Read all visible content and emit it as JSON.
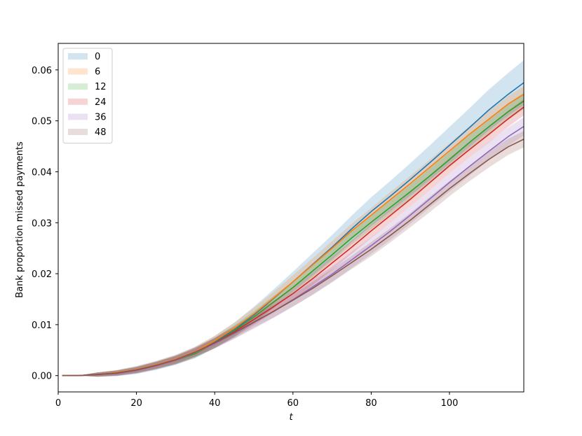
{
  "chart_data": {
    "type": "line",
    "title": "",
    "xlabel": "t",
    "ylabel": "Bank proportion missed payments",
    "xlim": [
      0,
      119
    ],
    "ylim": [
      -0.0032,
      0.0652
    ],
    "xticks": [
      0,
      20,
      40,
      60,
      80,
      100
    ],
    "xtick_labels": [
      "0",
      "20",
      "40",
      "60",
      "80",
      "100"
    ],
    "yticks": [
      0.0,
      0.01,
      0.02,
      0.03,
      0.04,
      0.05,
      0.06
    ],
    "ytick_labels": [
      "0.00",
      "0.01",
      "0.02",
      "0.03",
      "0.04",
      "0.05",
      "0.06"
    ],
    "grid": false,
    "legend_position": "upper-left",
    "shaded_band": "confidence interval around each series mean",
    "x": [
      1,
      5,
      10,
      15,
      20,
      25,
      30,
      35,
      40,
      45,
      50,
      55,
      60,
      65,
      70,
      75,
      80,
      85,
      90,
      95,
      100,
      105,
      110,
      115,
      119
    ],
    "series": [
      {
        "name": "0",
        "color": "#1f77b4",
        "values": [
          0.0,
          0.0,
          0.0002,
          0.0005,
          0.0011,
          0.002,
          0.0031,
          0.0046,
          0.0066,
          0.009,
          0.0119,
          0.0151,
          0.0184,
          0.0218,
          0.0252,
          0.0288,
          0.0322,
          0.0353,
          0.0385,
          0.0418,
          0.0452,
          0.0486,
          0.0521,
          0.0552,
          0.0575
        ],
        "band": [
          0.0,
          0.0,
          0.0004,
          0.0006,
          0.0008,
          0.0009,
          0.001,
          0.0011,
          0.0012,
          0.0014,
          0.0016,
          0.0018,
          0.002,
          0.0022,
          0.0024,
          0.0026,
          0.0028,
          0.003,
          0.0032,
          0.0034,
          0.0036,
          0.0038,
          0.004,
          0.0042,
          0.0044
        ]
      },
      {
        "name": "6",
        "color": "#ff7f0e",
        "values": [
          0.0,
          0.0,
          0.0002,
          0.0006,
          0.0012,
          0.0021,
          0.0032,
          0.0047,
          0.0068,
          0.0093,
          0.0121,
          0.0152,
          0.0184,
          0.0217,
          0.025,
          0.0284,
          0.0315,
          0.0346,
          0.0377,
          0.0409,
          0.0441,
          0.0473,
          0.0503,
          0.0533,
          0.0552
        ],
        "band": [
          0.0,
          0.0,
          0.0004,
          0.0005,
          0.0006,
          0.0007,
          0.0008,
          0.0009,
          0.001,
          0.0011,
          0.0012,
          0.0012,
          0.0013,
          0.0013,
          0.0014,
          0.0014,
          0.0014,
          0.0015,
          0.0015,
          0.0015,
          0.0015,
          0.0016,
          0.0016,
          0.0016,
          0.0016
        ]
      },
      {
        "name": "12",
        "color": "#2ca02c",
        "values": [
          0.0,
          0.0,
          0.0002,
          0.0005,
          0.0011,
          0.002,
          0.003,
          0.0043,
          0.0064,
          0.0088,
          0.0115,
          0.0144,
          0.0173,
          0.0205,
          0.0237,
          0.027,
          0.0301,
          0.0331,
          0.0361,
          0.0392,
          0.0424,
          0.0457,
          0.0488,
          0.0518,
          0.0539
        ],
        "band": [
          0.0,
          0.0,
          0.0004,
          0.0005,
          0.0006,
          0.0007,
          0.0008,
          0.0009,
          0.001,
          0.0011,
          0.0011,
          0.0012,
          0.0012,
          0.0013,
          0.0013,
          0.0013,
          0.0014,
          0.0014,
          0.0014,
          0.0015,
          0.0015,
          0.0015,
          0.0016,
          0.0016,
          0.0016
        ]
      },
      {
        "name": "24",
        "color": "#d62728",
        "values": [
          0.0,
          0.0,
          0.0002,
          0.0005,
          0.0011,
          0.002,
          0.0031,
          0.0046,
          0.0064,
          0.0086,
          0.011,
          0.0135,
          0.0161,
          0.019,
          0.0221,
          0.0252,
          0.0284,
          0.0315,
          0.0346,
          0.0379,
          0.0412,
          0.0443,
          0.0473,
          0.0504,
          0.0527
        ],
        "band": [
          0.0,
          0.0,
          0.0004,
          0.0005,
          0.0006,
          0.0007,
          0.0008,
          0.0009,
          0.001,
          0.0011,
          0.0011,
          0.0012,
          0.0012,
          0.0013,
          0.0013,
          0.0013,
          0.0014,
          0.0014,
          0.0014,
          0.0015,
          0.0015,
          0.0015,
          0.0016,
          0.0016,
          0.0016
        ]
      },
      {
        "name": "36",
        "color": "#9467bd",
        "values": [
          0.0,
          0.0,
          0.0002,
          0.0004,
          0.001,
          0.0019,
          0.003,
          0.0045,
          0.0063,
          0.0083,
          0.0104,
          0.0126,
          0.0149,
          0.0174,
          0.0199,
          0.0227,
          0.0255,
          0.0284,
          0.0315,
          0.0347,
          0.0379,
          0.041,
          0.044,
          0.0469,
          0.0489
        ],
        "band": [
          0.0,
          0.0,
          0.0004,
          0.0005,
          0.0006,
          0.0007,
          0.0008,
          0.0009,
          0.001,
          0.0011,
          0.0012,
          0.0013,
          0.0014,
          0.0015,
          0.0015,
          0.0016,
          0.0016,
          0.0017,
          0.0017,
          0.0017,
          0.0018,
          0.0018,
          0.0018,
          0.0018,
          0.0018
        ]
      },
      {
        "name": "48",
        "color": "#8c564b",
        "values": [
          0.0,
          0.0,
          0.0002,
          0.0005,
          0.0011,
          0.002,
          0.0031,
          0.0046,
          0.0064,
          0.0084,
          0.0105,
          0.0126,
          0.0148,
          0.0171,
          0.0196,
          0.0222,
          0.0248,
          0.0276,
          0.0305,
          0.0336,
          0.0367,
          0.0396,
          0.0424,
          0.0449,
          0.0464
        ],
        "band": [
          0.0,
          0.0,
          0.0004,
          0.0005,
          0.0006,
          0.0007,
          0.0008,
          0.0009,
          0.001,
          0.0011,
          0.0011,
          0.0012,
          0.0012,
          0.0013,
          0.0013,
          0.0013,
          0.0014,
          0.0014,
          0.0014,
          0.0015,
          0.0015,
          0.0015,
          0.0016,
          0.0016,
          0.0016
        ]
      }
    ]
  }
}
